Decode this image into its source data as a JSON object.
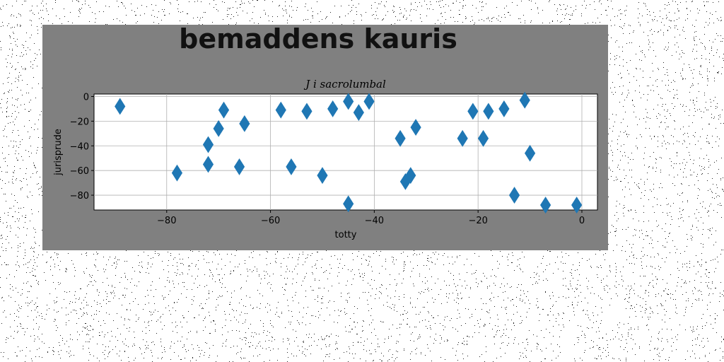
{
  "chart_data": {
    "type": "scatter",
    "suptitle": "bemaddens kauris",
    "title": "J i sacrolumbal",
    "xlabel": "totty",
    "ylabel": "jurisprude",
    "xlim": [
      -94,
      3
    ],
    "ylim": [
      -92,
      2
    ],
    "xticks": [
      -80,
      -60,
      -40,
      -20,
      0
    ],
    "yticks": [
      0,
      -20,
      -40,
      -60,
      -80
    ],
    "grid": true,
    "marker": "diamond",
    "color": "#1f77b4",
    "figure_background": "#808080",
    "points": [
      {
        "x": -89,
        "y": -8
      },
      {
        "x": -78,
        "y": -62
      },
      {
        "x": -72,
        "y": -39
      },
      {
        "x": -72,
        "y": -55
      },
      {
        "x": -70,
        "y": -26
      },
      {
        "x": -69,
        "y": -11
      },
      {
        "x": -66,
        "y": -57
      },
      {
        "x": -65,
        "y": -22
      },
      {
        "x": -58,
        "y": -11
      },
      {
        "x": -56,
        "y": -57
      },
      {
        "x": -53,
        "y": -12
      },
      {
        "x": -50,
        "y": -64
      },
      {
        "x": -48,
        "y": -10
      },
      {
        "x": -45,
        "y": -4
      },
      {
        "x": -45,
        "y": -87
      },
      {
        "x": -43,
        "y": -13
      },
      {
        "x": -41,
        "y": -4
      },
      {
        "x": -35,
        "y": -34
      },
      {
        "x": -34,
        "y": -69
      },
      {
        "x": -33,
        "y": -64
      },
      {
        "x": -32,
        "y": -25
      },
      {
        "x": -23,
        "y": -34
      },
      {
        "x": -21,
        "y": -12
      },
      {
        "x": -19,
        "y": -34
      },
      {
        "x": -18,
        "y": -12
      },
      {
        "x": -15,
        "y": -10
      },
      {
        "x": -13,
        "y": -80
      },
      {
        "x": -11,
        "y": -3
      },
      {
        "x": -10,
        "y": -46
      },
      {
        "x": -7,
        "y": -88
      },
      {
        "x": -1,
        "y": -88
      }
    ]
  }
}
